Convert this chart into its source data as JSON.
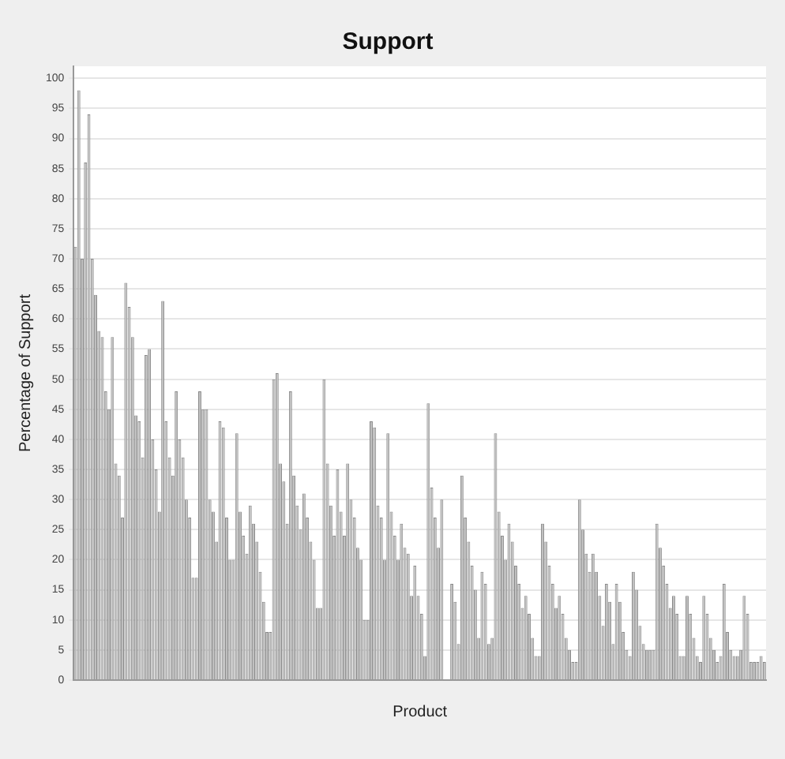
{
  "chart_data": {
    "type": "bar",
    "title": "Support",
    "xlabel": "Product",
    "ylabel": "Percentage of Support",
    "categories": [
      null,
      null,
      null,
      null,
      null,
      null,
      null,
      null,
      null,
      null,
      null,
      null,
      null,
      null,
      null,
      null,
      null,
      null,
      null,
      null,
      null,
      null,
      null,
      null,
      null,
      null,
      null,
      null,
      null,
      null,
      null,
      null,
      null,
      null,
      null,
      null,
      null,
      null,
      null,
      null,
      null,
      null,
      null,
      null,
      null,
      null,
      null,
      null,
      null,
      null,
      null,
      null,
      null,
      null,
      null,
      null,
      null,
      null,
      null,
      null,
      null,
      null,
      null,
      null,
      null,
      null,
      null,
      null,
      null,
      null,
      null,
      null,
      null,
      null,
      null,
      null,
      null,
      null,
      null,
      null,
      null,
      null,
      null,
      null,
      null,
      null,
      null,
      null,
      null,
      null,
      null,
      null,
      null,
      null,
      null,
      null,
      null,
      null,
      null,
      null,
      null,
      null,
      null,
      null,
      null,
      null,
      null,
      null,
      null,
      null,
      null,
      null,
      null,
      null,
      null,
      null,
      null,
      null,
      null,
      null,
      null,
      null,
      null,
      null,
      null,
      null,
      null,
      null,
      null,
      null,
      null,
      null,
      null,
      null,
      null,
      null,
      null,
      null,
      null,
      null,
      null,
      null,
      null,
      null,
      null,
      null,
      null,
      null,
      null,
      null,
      null,
      null,
      null,
      null,
      null,
      null,
      null,
      null,
      null,
      null,
      null,
      null,
      null,
      null,
      null,
      null,
      null,
      null,
      null,
      null,
      null,
      null,
      null,
      null,
      null,
      null,
      null,
      null,
      null,
      null,
      null,
      null,
      null,
      null,
      null,
      null,
      null,
      null,
      null,
      null,
      null,
      null,
      null,
      null,
      null,
      null,
      null,
      null,
      null,
      null,
      null,
      null,
      null,
      null,
      null,
      null
    ],
    "values": [
      72,
      98,
      70,
      86,
      94,
      70,
      64,
      58,
      57,
      48,
      45,
      57,
      36,
      34,
      27,
      66,
      62,
      57,
      44,
      43,
      37,
      54,
      55,
      40,
      35,
      28,
      63,
      43,
      37,
      34,
      48,
      40,
      37,
      30,
      27,
      17,
      17,
      48,
      45,
      45,
      30,
      28,
      23,
      43,
      42,
      27,
      20,
      20,
      41,
      28,
      24,
      21,
      29,
      26,
      23,
      18,
      13,
      8,
      8,
      50,
      51,
      36,
      33,
      26,
      48,
      34,
      29,
      25,
      31,
      27,
      23,
      20,
      12,
      12,
      50,
      36,
      29,
      24,
      35,
      28,
      24,
      36,
      30,
      27,
      22,
      20,
      10,
      10,
      43,
      42,
      29,
      27,
      20,
      41,
      28,
      24,
      20,
      26,
      22,
      21,
      14,
      19,
      14,
      11,
      4,
      46,
      32,
      27,
      22,
      30,
      0,
      0,
      16,
      13,
      6,
      34,
      27,
      23,
      19,
      15,
      7,
      18,
      16,
      6,
      7,
      41,
      28,
      24,
      20,
      26,
      23,
      19,
      16,
      12,
      14,
      11,
      7,
      4,
      4,
      26,
      23,
      19,
      16,
      12,
      14,
      11,
      7,
      5,
      3,
      3,
      30,
      25,
      21,
      18,
      21,
      18,
      14,
      9,
      16,
      13,
      6,
      16,
      13,
      8,
      5,
      4,
      18,
      15,
      9,
      6,
      5,
      5,
      5,
      26,
      22,
      19,
      16,
      12,
      14,
      11,
      4,
      4,
      14,
      11,
      7,
      4,
      3,
      14,
      11,
      7,
      5,
      3,
      4,
      16,
      8,
      5,
      4,
      4,
      5,
      14,
      11,
      3,
      3,
      3,
      4,
      3
    ],
    "color": "#bdbdbd",
    "ylim": [
      0,
      102
    ],
    "yticks": [
      0,
      5,
      10,
      15,
      20,
      25,
      30,
      35,
      40,
      45,
      50,
      55,
      60,
      65,
      70,
      75,
      80,
      85,
      90,
      95,
      100
    ],
    "grid": "y"
  }
}
